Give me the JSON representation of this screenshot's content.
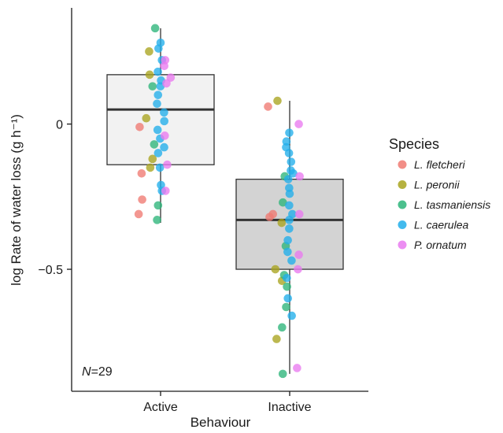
{
  "chart_data": {
    "type": "box",
    "xlabel": "Behaviour",
    "ylabel": "log Rate of water loss (g h⁻¹)",
    "categories": [
      "Active",
      "Inactive"
    ],
    "ylim": [
      -0.92,
      0.4
    ],
    "yticks": [
      0,
      -0.5
    ],
    "ytick_labels": [
      "0",
      "−0.5"
    ],
    "grid": false,
    "legend_position": "right",
    "annotation": {
      "italic": "N",
      "rest": "=29"
    },
    "legend": {
      "title": "Species",
      "entries": [
        {
          "label": "L. fletcheri",
          "color": "#F07A72"
        },
        {
          "label": "L. peronii",
          "color": "#A9A41F"
        },
        {
          "label": "L. tasmaniensis",
          "color": "#2DB57A"
        },
        {
          "label": "L. caerulea",
          "color": "#21AEEA"
        },
        {
          "label": "P. ornatum",
          "color": "#E97AF0"
        }
      ]
    },
    "boxes": [
      {
        "category": "Active",
        "whisker_low": -0.34,
        "q1": -0.14,
        "median": 0.05,
        "q3": 0.17,
        "whisker_high": 0.33,
        "fill": "#F2F2F2"
      },
      {
        "category": "Inactive",
        "whisker_low": -0.86,
        "q1": -0.5,
        "median": -0.33,
        "q3": -0.19,
        "whisker_high": 0.08,
        "fill": "#D3D3D3"
      }
    ],
    "points": [
      {
        "category": "Active",
        "species": "L. fletcheri",
        "values": [
          -0.17,
          -0.26,
          -0.31,
          -0.01
        ]
      },
      {
        "category": "Active",
        "species": "L. peronii",
        "values": [
          0.25,
          0.17,
          0.02,
          -0.12,
          -0.15
        ]
      },
      {
        "category": "Active",
        "species": "L. tasmaniensis",
        "values": [
          0.33,
          -0.07,
          -0.28,
          -0.33,
          0.13
        ]
      },
      {
        "category": "Active",
        "species": "L. caerulea",
        "values": [
          0.28,
          0.26,
          0.22,
          0.18,
          0.15,
          0.13,
          0.1,
          0.07,
          0.04,
          0.01,
          -0.02,
          -0.05,
          -0.08,
          -0.1,
          -0.15,
          -0.21,
          -0.23
        ]
      },
      {
        "category": "Active",
        "species": "P. ornatum",
        "values": [
          0.22,
          0.2,
          0.16,
          0.14,
          -0.04,
          -0.14,
          -0.23
        ]
      },
      {
        "category": "Inactive",
        "species": "L. fletcheri",
        "values": [
          0.06,
          -0.31,
          -0.32
        ]
      },
      {
        "category": "Inactive",
        "species": "L. peronii",
        "values": [
          0.08,
          -0.5,
          -0.54,
          -0.74,
          -0.34
        ]
      },
      {
        "category": "Inactive",
        "species": "L. tasmaniensis",
        "values": [
          -0.18,
          -0.27,
          -0.42,
          -0.52,
          -0.56,
          -0.63,
          -0.7,
          -0.86
        ]
      },
      {
        "category": "Inactive",
        "species": "L. caerulea",
        "values": [
          -0.03,
          -0.06,
          -0.08,
          -0.1,
          -0.13,
          -0.16,
          -0.17,
          -0.19,
          -0.22,
          -0.24,
          -0.28,
          -0.31,
          -0.33,
          -0.36,
          -0.4,
          -0.44,
          -0.47,
          -0.53,
          -0.6,
          -0.66
        ]
      },
      {
        "category": "Inactive",
        "species": "P. ornatum",
        "values": [
          0.0,
          -0.18,
          -0.31,
          -0.45,
          -0.5,
          -0.84
        ]
      }
    ]
  }
}
